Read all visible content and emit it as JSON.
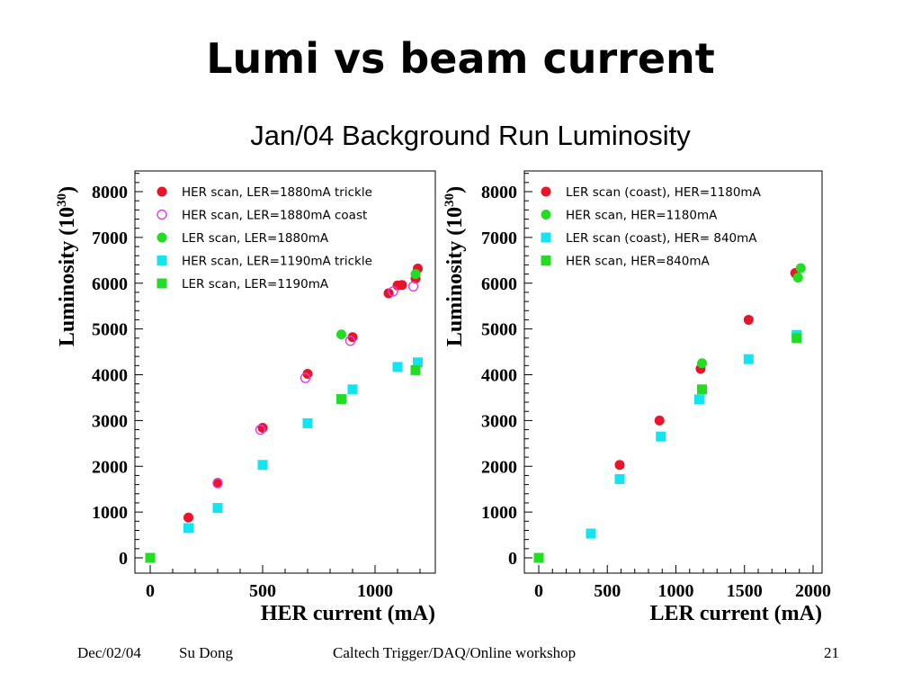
{
  "slide": {
    "title": "Lumi vs beam current",
    "subtitle": "Jan/04 Background Run Luminosity"
  },
  "footer": {
    "date": "Dec/02/04",
    "author": "Su Dong",
    "event": "Caltech Trigger/DAQ/Online workshop",
    "page": "21"
  },
  "colors": {
    "red": "#e8142a",
    "magenta": "#e040e0",
    "green": "#22dd22",
    "cyan": "#11e6f0"
  },
  "chart_data": [
    {
      "type": "scatter",
      "xlabel": "HER current (mA)",
      "ylabel": "Luminosity (10",
      "ylabel_sup": "30",
      "ylabel_close": ")",
      "xlim": [
        -120,
        1270
      ],
      "ylim": [
        -400,
        8700
      ],
      "xticks": [
        0,
        500,
        1000
      ],
      "xtick_labels": [
        "0",
        "500",
        "1000"
      ],
      "yticks": [
        0,
        1000,
        2000,
        3000,
        4000,
        5000,
        6000,
        7000,
        8000
      ],
      "ytick_labels": [
        "0",
        "1000",
        "2000",
        "3000",
        "4000",
        "5000",
        "6000",
        "7000",
        "8000"
      ],
      "legend": "top-left",
      "series": [
        {
          "name": "HER scan, LER=1880mA trickle",
          "marker": "circle",
          "color": "#e8142a",
          "points": [
            [
              170,
              880
            ],
            [
              300,
              1640
            ],
            [
              500,
              2840
            ],
            [
              700,
              4020
            ],
            [
              900,
              4820
            ],
            [
              1060,
              5780
            ],
            [
              1100,
              5950
            ],
            [
              1120,
              5960
            ],
            [
              1180,
              6100
            ],
            [
              1190,
              6320
            ]
          ]
        },
        {
          "name": "HER scan, LER=1880mA coast",
          "marker": "circle-open",
          "color": "#e040e0",
          "points": [
            [
              300,
              1630
            ],
            [
              490,
              2800
            ],
            [
              690,
              3930
            ],
            [
              890,
              4740
            ],
            [
              1080,
              5820
            ],
            [
              1170,
              5930
            ]
          ]
        },
        {
          "name": "LER scan, LER=1880mA",
          "marker": "circle",
          "color": "#22dd22",
          "points": [
            [
              850,
              4880
            ],
            [
              1180,
              6200
            ]
          ]
        },
        {
          "name": "HER scan, LER=1190mA trickle",
          "marker": "square",
          "color": "#11e6f0",
          "points": [
            [
              170,
              650
            ],
            [
              300,
              1090
            ],
            [
              500,
              2030
            ],
            [
              700,
              2940
            ],
            [
              900,
              3680
            ],
            [
              1100,
              4170
            ],
            [
              1190,
              4270
            ]
          ]
        },
        {
          "name": "LER scan, LER=1190mA",
          "marker": "square",
          "color": "#22dd22",
          "points": [
            [
              0,
              0
            ],
            [
              850,
              3470
            ],
            [
              1180,
              4100
            ]
          ]
        }
      ]
    },
    {
      "type": "scatter",
      "xlabel": "LER current (mA)",
      "ylabel": "Luminosity (10",
      "ylabel_sup": "30",
      "ylabel_close": ")",
      "xlim": [
        -100,
        2070
      ],
      "ylim": [
        -400,
        8700
      ],
      "xticks": [
        0,
        500,
        1000,
        1500,
        2000
      ],
      "xtick_labels": [
        "0",
        "500",
        "1000",
        "1500",
        "2000"
      ],
      "yticks": [
        0,
        1000,
        2000,
        3000,
        4000,
        5000,
        6000,
        7000,
        8000
      ],
      "ytick_labels": [
        "0",
        "1000",
        "2000",
        "3000",
        "4000",
        "5000",
        "6000",
        "7000",
        "8000"
      ],
      "legend": "top-left",
      "series": [
        {
          "name": "LER scan (coast), HER=1180mA",
          "marker": "circle",
          "color": "#e8142a",
          "points": [
            [
              590,
              2030
            ],
            [
              880,
              3000
            ],
            [
              1180,
              4130
            ],
            [
              1530,
              5200
            ],
            [
              1870,
              6220
            ]
          ]
        },
        {
          "name": "HER scan, HER=1180mA",
          "marker": "circle",
          "color": "#22dd22",
          "points": [
            [
              1190,
              4250
            ],
            [
              1890,
              6120
            ],
            [
              1910,
              6330
            ]
          ]
        },
        {
          "name": "LER scan (coast), HER= 840mA",
          "marker": "square",
          "color": "#11e6f0",
          "points": [
            [
              380,
              530
            ],
            [
              590,
              1720
            ],
            [
              890,
              2650
            ],
            [
              1170,
              3460
            ],
            [
              1530,
              4340
            ],
            [
              1880,
              4870
            ]
          ]
        },
        {
          "name": "HER scan, HER=840mA",
          "marker": "square",
          "color": "#22dd22",
          "points": [
            [
              0,
              0
            ],
            [
              1190,
              3680
            ],
            [
              1880,
              4800
            ]
          ]
        }
      ]
    }
  ]
}
